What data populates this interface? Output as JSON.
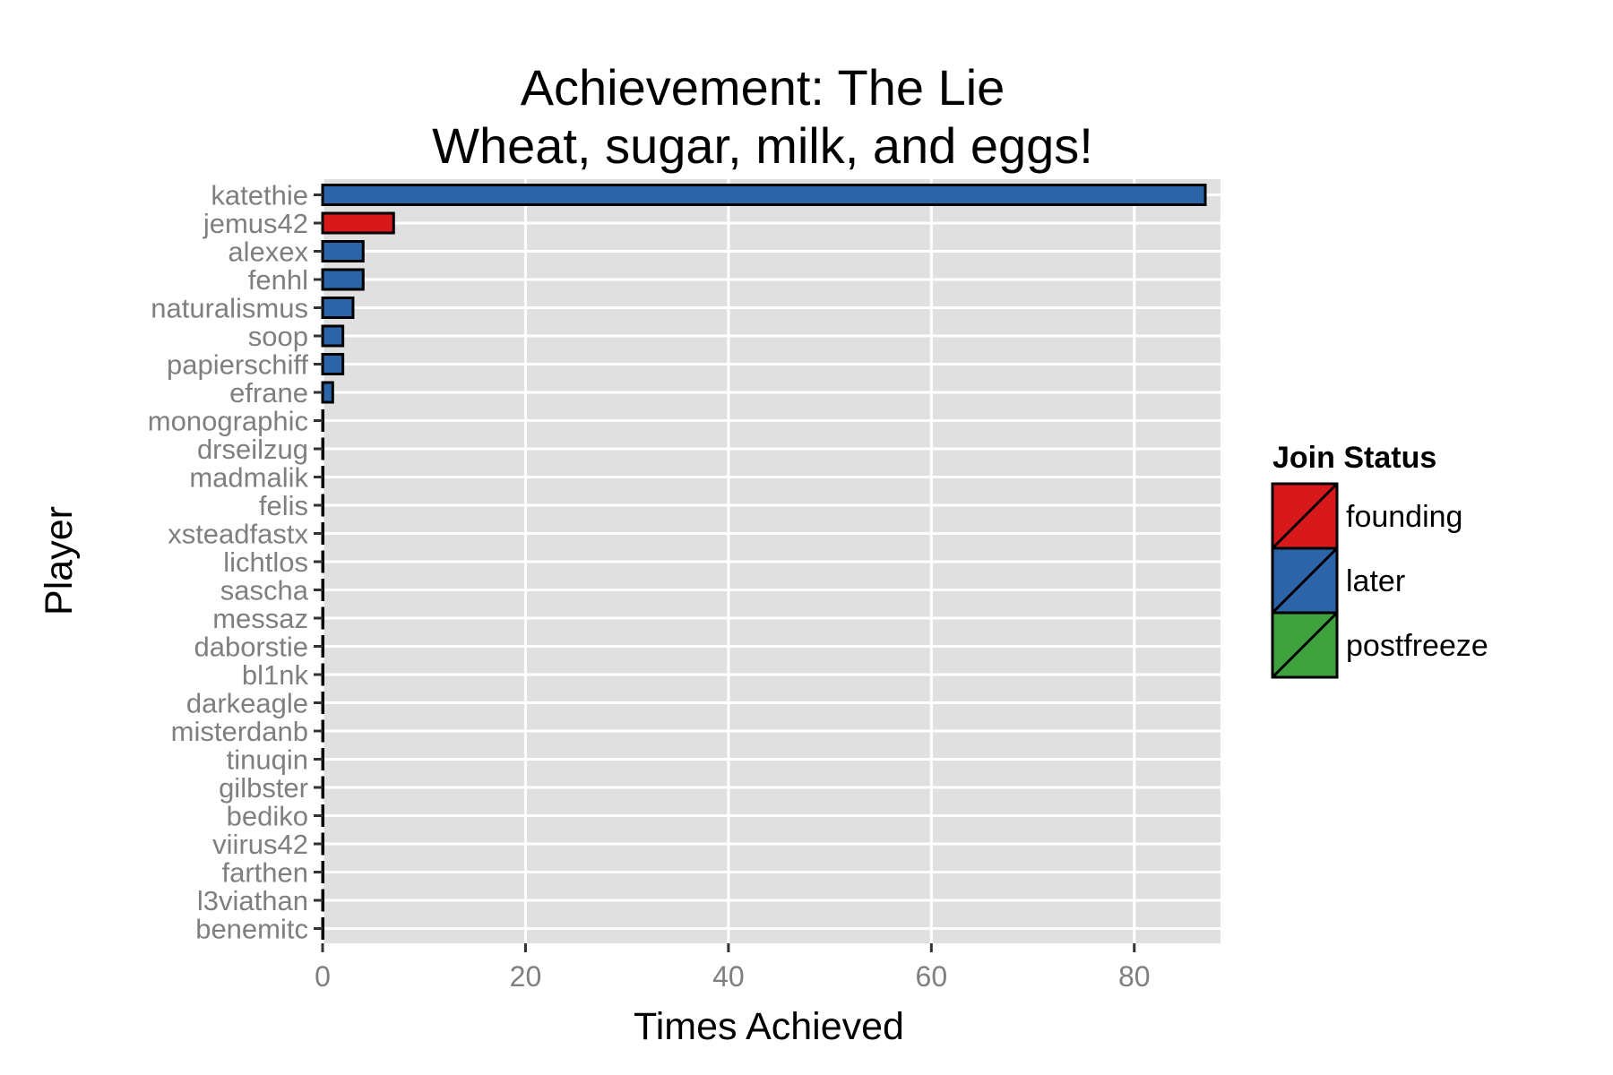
{
  "chart_data": {
    "type": "bar",
    "orientation": "horizontal",
    "title": "Achievement: The Lie",
    "subtitle": "Wheat, sugar, milk, and eggs!",
    "xlabel": "Times Achieved",
    "ylabel": "Player",
    "xlim": [
      0,
      88.5
    ],
    "x_ticks": [
      0,
      20,
      40,
      60,
      80
    ],
    "grid": true,
    "legend_position": "right",
    "legend": {
      "title": "Join Status",
      "items": [
        {
          "label": "founding",
          "color": "#d7191c"
        },
        {
          "label": "later",
          "color": "#2c64a8"
        },
        {
          "label": "postfreeze",
          "color": "#3ea23e"
        }
      ]
    },
    "categories": [
      "katethie",
      "jemus42",
      "alexex",
      "fenhl",
      "naturalismus",
      "soop",
      "papierschiff",
      "efrane",
      "monographic",
      "drseilzug",
      "madmalik",
      "felis",
      "xsteadfastx",
      "lichtlos",
      "sascha",
      "messaz",
      "daborstie",
      "bl1nk",
      "darkeagle",
      "misterdanb",
      "tinuqin",
      "gilbster",
      "bediko",
      "viirus42",
      "farthen",
      "l3viathan",
      "benemitc"
    ],
    "values": [
      87,
      7,
      4,
      4,
      3,
      2,
      2,
      1,
      0,
      0,
      0,
      0,
      0,
      0,
      0,
      0,
      0,
      0,
      0,
      0,
      0,
      0,
      0,
      0,
      0,
      0,
      0
    ],
    "status": [
      "later",
      "founding",
      "later",
      "later",
      "later",
      "later",
      "later",
      "later",
      "later",
      "later",
      "later",
      "later",
      "later",
      "later",
      "later",
      "later",
      "later",
      "later",
      "later",
      "later",
      "later",
      "later",
      "later",
      "later",
      "later",
      "later",
      "later"
    ],
    "colors": {
      "panel_background": "#e0e0e0",
      "grid": "#ffffff",
      "bar_outline": "#000000"
    }
  }
}
